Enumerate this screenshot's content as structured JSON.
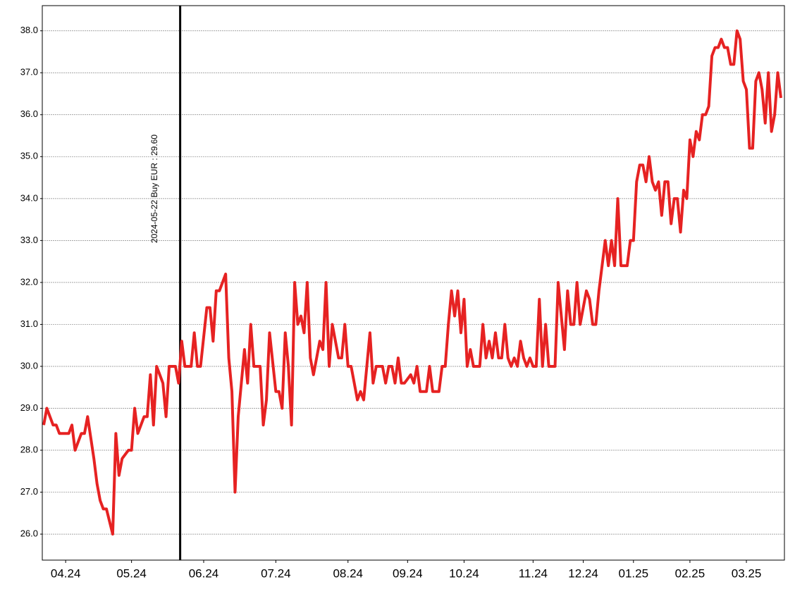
{
  "chart_data": {
    "type": "line",
    "annotation": "2024-05-22 Buy EUR : 29.60",
    "categories": [
      null,
      null,
      null,
      null,
      null,
      null,
      null,
      "04.24",
      null,
      null,
      null,
      null,
      null,
      null,
      null,
      null,
      null,
      null,
      null,
      null,
      null,
      null,
      null,
      null,
      null,
      null,
      null,
      null,
      "05.24",
      null,
      null,
      null,
      null,
      null,
      null,
      null,
      null,
      null,
      null,
      null,
      null,
      null,
      null,
      null,
      null,
      null,
      null,
      null,
      null,
      null,
      null,
      "06.24",
      null,
      null,
      null,
      null,
      null,
      null,
      null,
      null,
      null,
      null,
      null,
      null,
      null,
      null,
      null,
      null,
      null,
      null,
      null,
      null,
      null,
      null,
      "07.24",
      null,
      null,
      null,
      null,
      null,
      null,
      null,
      null,
      null,
      null,
      null,
      null,
      null,
      null,
      null,
      null,
      null,
      null,
      null,
      null,
      null,
      null,
      "08.24",
      null,
      null,
      null,
      null,
      null,
      null,
      null,
      null,
      null,
      null,
      null,
      null,
      null,
      null,
      null,
      null,
      null,
      null,
      "09.24",
      null,
      null,
      null,
      null,
      null,
      null,
      null,
      null,
      null,
      null,
      null,
      null,
      null,
      null,
      null,
      null,
      null,
      "10.24",
      null,
      null,
      null,
      null,
      null,
      null,
      null,
      null,
      null,
      null,
      null,
      null,
      null,
      null,
      null,
      null,
      null,
      null,
      null,
      null,
      null,
      "11.24",
      null,
      null,
      null,
      null,
      null,
      null,
      null,
      null,
      null,
      null,
      null,
      null,
      null,
      null,
      null,
      "12.24",
      null,
      null,
      null,
      null,
      null,
      null,
      null,
      null,
      null,
      null,
      null,
      null,
      null,
      null,
      null,
      "01.25",
      null,
      null,
      null,
      null,
      null,
      null,
      null,
      null,
      null,
      null,
      null,
      null,
      null,
      null,
      null,
      null,
      null,
      "02.25",
      null,
      null,
      null,
      null,
      null,
      null,
      null,
      null,
      null,
      null,
      null,
      null,
      null,
      null,
      null,
      null,
      null,
      "03.25",
      null,
      null,
      null,
      null,
      null,
      null,
      null,
      null,
      null,
      null,
      null
    ],
    "series": [
      {
        "color": "#e62222",
        "values": [
          28.6,
          29.0,
          28.8,
          28.6,
          28.6,
          28.4,
          28.4,
          28.4,
          28.4,
          28.6,
          28.0,
          28.2,
          28.4,
          28.4,
          28.8,
          28.3,
          27.8,
          27.2,
          26.8,
          26.6,
          26.6,
          26.3,
          26.0,
          28.4,
          27.4,
          27.8,
          27.9,
          28.0,
          28.0,
          29.0,
          28.4,
          28.6,
          28.8,
          28.8,
          29.8,
          28.6,
          30.0,
          29.8,
          29.6,
          28.8,
          30.0,
          30.0,
          30.0,
          29.6,
          30.6,
          30.0,
          30.0,
          30.0,
          30.8,
          30.0,
          30.0,
          30.7,
          31.4,
          31.4,
          30.6,
          31.8,
          31.8,
          32.0,
          32.2,
          30.2,
          29.4,
          27.0,
          28.8,
          29.6,
          30.4,
          29.6,
          31.0,
          30.0,
          30.0,
          30.0,
          28.6,
          29.2,
          30.8,
          30.1,
          29.4,
          29.4,
          29.0,
          30.8,
          30.0,
          28.6,
          32.0,
          31.0,
          31.2,
          30.8,
          32.0,
          30.2,
          29.8,
          30.2,
          30.6,
          30.4,
          32.0,
          30.0,
          31.0,
          30.6,
          30.2,
          30.2,
          31.0,
          30.0,
          30.0,
          29.6,
          29.2,
          29.4,
          29.2,
          30.0,
          30.8,
          29.6,
          30.0,
          30.0,
          30.0,
          29.6,
          30.0,
          30.0,
          29.6,
          30.2,
          29.6,
          29.6,
          29.7,
          29.8,
          29.6,
          30.0,
          29.4,
          29.4,
          29.4,
          30.0,
          29.4,
          29.4,
          29.4,
          30.0,
          30.0,
          31.0,
          31.8,
          31.2,
          31.8,
          30.8,
          31.6,
          30.0,
          30.4,
          30.0,
          30.0,
          30.0,
          31.0,
          30.2,
          30.6,
          30.2,
          30.8,
          30.2,
          30.2,
          31.0,
          30.2,
          30.0,
          30.2,
          30.0,
          30.6,
          30.2,
          30.0,
          30.2,
          30.0,
          30.0,
          31.6,
          30.0,
          31.0,
          30.0,
          30.0,
          30.0,
          32.0,
          31.2,
          30.4,
          31.8,
          31.0,
          31.0,
          32.0,
          31.0,
          31.4,
          31.8,
          31.6,
          31.0,
          31.0,
          31.8,
          32.4,
          33.0,
          32.4,
          33.0,
          32.4,
          34.0,
          32.4,
          32.4,
          32.4,
          33.0,
          33.0,
          34.4,
          34.8,
          34.8,
          34.4,
          35.0,
          34.4,
          34.2,
          34.4,
          33.6,
          34.4,
          34.4,
          33.4,
          34.0,
          34.0,
          33.2,
          34.2,
          34.0,
          35.4,
          35.0,
          35.6,
          35.4,
          36.0,
          36.0,
          36.2,
          37.4,
          37.6,
          37.6,
          37.8,
          37.6,
          37.6,
          37.2,
          37.2,
          38.0,
          37.8,
          36.8,
          36.6,
          35.2,
          35.2,
          36.8,
          37.0,
          36.6,
          35.8,
          37.0,
          35.6,
          36.0,
          37.0,
          36.4
        ]
      }
    ],
    "ylim": [
      25.38,
      38.6
    ],
    "yticks": [
      {
        "value": 26,
        "label": "26.0"
      },
      {
        "value": 27,
        "label": "27.0"
      },
      {
        "value": 28,
        "label": "28.0"
      },
      {
        "value": 29,
        "label": "29.0"
      },
      {
        "value": 30,
        "label": "30.0"
      },
      {
        "value": 31,
        "label": "31.0"
      },
      {
        "value": 32,
        "label": "32.0"
      },
      {
        "value": 33,
        "label": "33.0"
      },
      {
        "value": 34,
        "label": "34.0"
      },
      {
        "value": 35,
        "label": "35.0"
      },
      {
        "value": 36,
        "label": "36.0"
      },
      {
        "value": 37,
        "label": "37.0"
      },
      {
        "value": 38,
        "label": "38.0"
      }
    ],
    "grid": true
  }
}
